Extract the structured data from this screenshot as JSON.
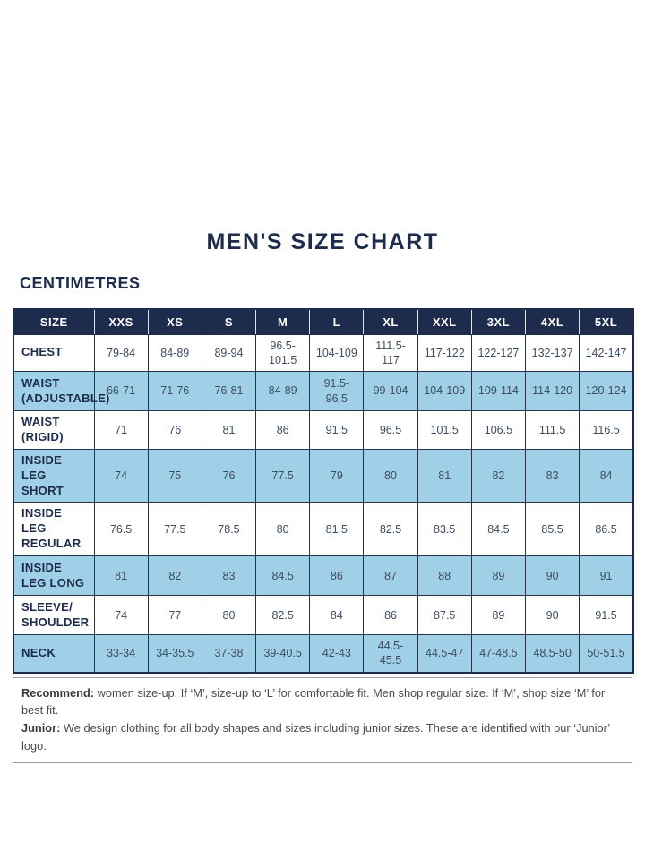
{
  "page": {
    "title": "MEN'S SIZE CHART",
    "unit_label": "CENTIMETRES"
  },
  "colors": {
    "navy": "#1d2b4c",
    "row_blue": "#9fd0e8",
    "row_white": "#ffffff",
    "cell_border": "#24334f",
    "value_text": "#3e4c61",
    "footer_border": "#9a9a9a"
  },
  "chart_data": {
    "type": "table",
    "title": "MEN'S SIZE CHART",
    "unit": "CENTIMETRES",
    "columns": [
      "SIZE",
      "XXS",
      "XS",
      "S",
      "M",
      "L",
      "XL",
      "XXL",
      "3XL",
      "4XL",
      "5XL"
    ],
    "rows": [
      {
        "label": "CHEST",
        "values": [
          "79-84",
          "84-89",
          "89-94",
          "96.5-101.5",
          "104-109",
          "111.5-117",
          "117-122",
          "122-127",
          "132-137",
          "142-147"
        ]
      },
      {
        "label": "WAIST (ADJUSTABLE)",
        "values": [
          "66-71",
          "71-76",
          "76-81",
          "84-89",
          "91.5-96.5",
          "99-104",
          "104-109",
          "109-114",
          "114-120",
          "120-124"
        ]
      },
      {
        "label": "WAIST (RIGID)",
        "values": [
          "71",
          "76",
          "81",
          "86",
          "91.5",
          "96.5",
          "101.5",
          "106.5",
          "111.5",
          "116.5"
        ]
      },
      {
        "label": "INSIDE LEG SHORT",
        "values": [
          "74",
          "75",
          "76",
          "77.5",
          "79",
          "80",
          "81",
          "82",
          "83",
          "84"
        ]
      },
      {
        "label": "INSIDE LEG REGULAR",
        "values": [
          "76.5",
          "77.5",
          "78.5",
          "80",
          "81.5",
          "82.5",
          "83.5",
          "84.5",
          "85.5",
          "86.5"
        ]
      },
      {
        "label": "INSIDE LEG LONG",
        "values": [
          "81",
          "82",
          "83",
          "84.5",
          "86",
          "87",
          "88",
          "89",
          "90",
          "91"
        ]
      },
      {
        "label": "SLEEVE/ SHOULDER",
        "values": [
          "74",
          "77",
          "80",
          "82.5",
          "84",
          "86",
          "87.5",
          "89",
          "90",
          "91.5"
        ]
      },
      {
        "label": "NECK",
        "values": [
          "33-34",
          "34-35.5",
          "37-38",
          "39-40.5",
          "42-43",
          "44.5-45.5",
          "44.5-47",
          "47-48.5",
          "48.5-50",
          "50-51.5"
        ]
      }
    ]
  },
  "footer": {
    "recommend_label": "Recommend:",
    "recommend_text": " women size-up. If ‘M’, size-up to ‘L’ for comfortable fit. Men shop regular size. If ‘M’, shop size ‘M’ for best fit.",
    "junior_label": "Junior:",
    "junior_text": " We design clothing for all body shapes and sizes including junior sizes. These are identified with our ‘Junior’ logo."
  }
}
